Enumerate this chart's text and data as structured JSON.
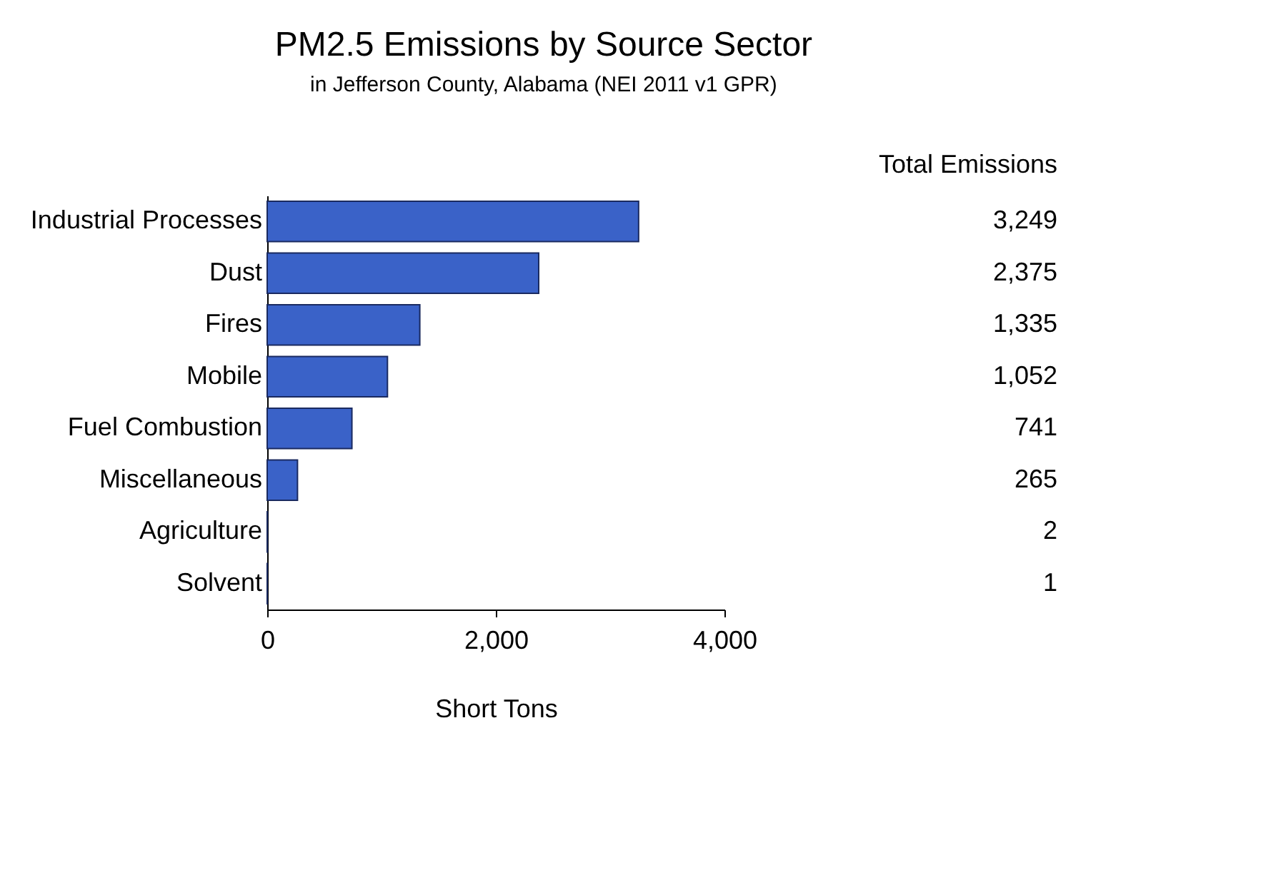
{
  "chart_data": {
    "type": "bar",
    "orientation": "horizontal",
    "title": "PM2.5 Emissions by Source Sector",
    "subtitle": "in Jefferson County, Alabama (NEI 2011 v1 GPR)",
    "xlabel": "Short Tons",
    "categories": [
      "Industrial Processes",
      "Dust",
      "Fires",
      "Mobile",
      "Fuel Combustion",
      "Miscellaneous",
      "Agriculture",
      "Solvent"
    ],
    "values": [
      3249,
      2375,
      1335,
      1052,
      741,
      265,
      2,
      1
    ],
    "value_labels": [
      "3,249",
      "2,375",
      "1,335",
      "1,052",
      "741",
      "265",
      "2",
      "1"
    ],
    "color": "#3a62c8",
    "xlim": [
      0,
      4000
    ],
    "xticks": [
      0,
      {
        "value": 2000,
        "label": "2,000"
      },
      {
        "value": 4000,
        "label": "4,000"
      }
    ],
    "annotations": [
      "Total Emissions"
    ],
    "grid": false
  }
}
